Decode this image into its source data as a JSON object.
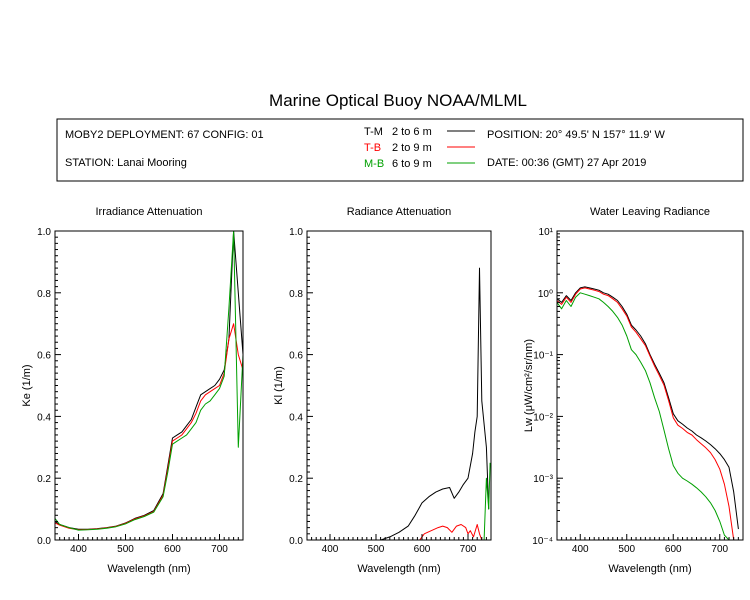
{
  "title": "Marine Optical Buoy NOAA/MLML",
  "info": {
    "deployment": "MOBY2 DEPLOYMENT: 67 CONFIG: 01",
    "station": "STATION: Lanai Mooring",
    "position": "POSITION: 20° 49.5' N   157° 11.9' W",
    "date": "DATE: 00:36 (GMT) 27 Apr 2019",
    "legend": [
      {
        "code": "T-M",
        "range": "2 to 6  m",
        "color": "#000000"
      },
      {
        "code": "T-B",
        "range": "2 to 9  m",
        "color": "#ff0000"
      },
      {
        "code": "M-B",
        "range": "6 to 9  m",
        "color": "#00a000"
      }
    ]
  },
  "chart_data": [
    {
      "type": "line",
      "title": "Irradiance Attenuation",
      "xlabel": "Wavelength (nm)",
      "ylabel": "Ke  (1/m)",
      "xlim": [
        350,
        750
      ],
      "ylim": [
        0,
        1.0
      ],
      "xticks": [
        "400",
        "500",
        "600",
        "700"
      ],
      "yticks": [
        "0.0",
        "0.2",
        "0.4",
        "0.6",
        "0.8",
        "1.0"
      ],
      "series": [
        {
          "color": "#000000",
          "x": [
            350,
            360,
            380,
            400,
            420,
            440,
            460,
            480,
            500,
            520,
            540,
            560,
            580,
            590,
            600,
            610,
            620,
            630,
            640,
            650,
            660,
            670,
            680,
            690,
            700,
            710,
            720,
            730,
            740,
            750
          ],
          "y": [
            0.06,
            0.05,
            0.04,
            0.035,
            0.035,
            0.037,
            0.04,
            0.045,
            0.055,
            0.07,
            0.08,
            0.095,
            0.15,
            0.24,
            0.33,
            0.34,
            0.35,
            0.37,
            0.39,
            0.43,
            0.47,
            0.48,
            0.49,
            0.5,
            0.52,
            0.55,
            0.65,
            1.0,
            0.8,
            0.6
          ]
        },
        {
          "color": "#ff0000",
          "x": [
            350,
            360,
            380,
            400,
            420,
            440,
            460,
            480,
            500,
            520,
            540,
            560,
            580,
            590,
            600,
            610,
            620,
            630,
            640,
            650,
            660,
            670,
            680,
            690,
            700,
            710,
            720,
            730,
            740,
            750
          ],
          "y": [
            0.055,
            0.048,
            0.038,
            0.033,
            0.034,
            0.036,
            0.039,
            0.044,
            0.054,
            0.068,
            0.078,
            0.092,
            0.145,
            0.23,
            0.32,
            0.33,
            0.34,
            0.36,
            0.38,
            0.41,
            0.45,
            0.47,
            0.48,
            0.49,
            0.5,
            0.54,
            0.65,
            0.7,
            0.6,
            0.55
          ]
        },
        {
          "color": "#00a000",
          "x": [
            350,
            360,
            380,
            400,
            420,
            440,
            460,
            480,
            500,
            520,
            540,
            560,
            580,
            590,
            600,
            610,
            620,
            630,
            640,
            650,
            660,
            670,
            680,
            690,
            700,
            710,
            720,
            730,
            740,
            750
          ],
          "y": [
            0.07,
            0.05,
            0.04,
            0.032,
            0.033,
            0.035,
            0.038,
            0.043,
            0.052,
            0.066,
            0.076,
            0.09,
            0.14,
            0.22,
            0.31,
            0.32,
            0.33,
            0.34,
            0.36,
            0.38,
            0.42,
            0.44,
            0.45,
            0.47,
            0.49,
            0.53,
            0.75,
            1.0,
            0.3,
            0.6
          ]
        }
      ]
    },
    {
      "type": "line",
      "title": "Radiance Attenuation",
      "xlabel": "Wavelength (nm)",
      "ylabel": "Kl  (1/m)",
      "xlim": [
        350,
        750
      ],
      "ylim": [
        0,
        1.0
      ],
      "xticks": [
        "400",
        "500",
        "600",
        "700"
      ],
      "yticks": [
        "0.0",
        "0.2",
        "0.4",
        "0.6",
        "0.8",
        "1.0"
      ],
      "series": [
        {
          "color": "#000000",
          "x": [
            510,
            530,
            550,
            570,
            585,
            600,
            615,
            630,
            645,
            660,
            670,
            680,
            690,
            700,
            710,
            715,
            720,
            725,
            730,
            740,
            745
          ],
          "y": [
            0.0,
            0.01,
            0.025,
            0.045,
            0.08,
            0.12,
            0.14,
            0.155,
            0.165,
            0.17,
            0.135,
            0.155,
            0.18,
            0.2,
            0.28,
            0.35,
            0.4,
            0.88,
            0.45,
            0.3,
            0.1
          ]
        },
        {
          "color": "#ff0000",
          "x": [
            595,
            605,
            620,
            635,
            645,
            655,
            665,
            675,
            685,
            695,
            700,
            705,
            712,
            720,
            725,
            730
          ],
          "y": [
            0.0,
            0.02,
            0.03,
            0.04,
            0.045,
            0.04,
            0.025,
            0.045,
            0.05,
            0.04,
            0.02,
            0.03,
            0.01,
            0.05,
            0.02,
            0.0
          ]
        },
        {
          "color": "#00a000",
          "x": [
            735,
            740,
            745,
            748
          ],
          "y": [
            0.0,
            0.2,
            0.1,
            0.25
          ]
        }
      ]
    },
    {
      "type": "line",
      "title": "Water Leaving Radiance",
      "xlabel": "Wavelength (nm)",
      "ylabel": "Lw  (μW/cm²/sr/nm)",
      "yscale": "log",
      "xlim": [
        350,
        750
      ],
      "ylim": [
        0.0001,
        10
      ],
      "xticks": [
        "400",
        "500",
        "600",
        "700"
      ],
      "yticks": [
        "10⁻⁴",
        "10⁻³",
        "10⁻²",
        "10⁻¹",
        "10⁰",
        "10¹"
      ],
      "series": [
        {
          "color": "#000000",
          "x": [
            350,
            360,
            370,
            380,
            390,
            400,
            410,
            420,
            430,
            440,
            450,
            460,
            470,
            480,
            490,
            500,
            510,
            520,
            530,
            540,
            550,
            560,
            570,
            580,
            590,
            600,
            610,
            620,
            630,
            640,
            650,
            660,
            670,
            680,
            690,
            700,
            710,
            720,
            730,
            740
          ],
          "y": [
            0.8,
            0.7,
            0.9,
            0.75,
            1.0,
            1.2,
            1.25,
            1.2,
            1.15,
            1.1,
            1.0,
            0.95,
            0.85,
            0.75,
            0.6,
            0.45,
            0.3,
            0.25,
            0.2,
            0.15,
            0.1,
            0.07,
            0.05,
            0.035,
            0.02,
            0.011,
            0.0085,
            0.0075,
            0.0065,
            0.0058,
            0.005,
            0.0045,
            0.004,
            0.0035,
            0.003,
            0.0025,
            0.002,
            0.0015,
            0.0006,
            0.00015
          ]
        },
        {
          "color": "#ff0000",
          "x": [
            350,
            360,
            370,
            380,
            390,
            400,
            410,
            420,
            430,
            440,
            450,
            460,
            470,
            480,
            490,
            500,
            510,
            520,
            530,
            540,
            550,
            560,
            570,
            580,
            590,
            600,
            610,
            620,
            630,
            640,
            650,
            660,
            670,
            680,
            690,
            700,
            710,
            720,
            730
          ],
          "y": [
            0.75,
            0.65,
            0.85,
            0.7,
            0.95,
            1.15,
            1.2,
            1.15,
            1.1,
            1.05,
            0.95,
            0.9,
            0.8,
            0.7,
            0.55,
            0.42,
            0.28,
            0.23,
            0.18,
            0.14,
            0.095,
            0.065,
            0.046,
            0.032,
            0.018,
            0.0095,
            0.0072,
            0.0064,
            0.0055,
            0.005,
            0.0042,
            0.0036,
            0.0031,
            0.0026,
            0.002,
            0.0014,
            0.0008,
            0.00035,
            0.0001
          ]
        },
        {
          "color": "#00a000",
          "x": [
            350,
            360,
            370,
            380,
            390,
            400,
            410,
            420,
            430,
            440,
            450,
            460,
            470,
            480,
            490,
            500,
            510,
            520,
            530,
            540,
            550,
            560,
            570,
            580,
            590,
            600,
            610,
            620,
            630,
            640,
            650,
            660,
            670,
            680,
            690,
            700,
            710,
            720
          ],
          "y": [
            0.7,
            0.55,
            0.75,
            0.6,
            0.85,
            1.0,
            0.95,
            0.9,
            0.85,
            0.8,
            0.7,
            0.6,
            0.5,
            0.4,
            0.3,
            0.2,
            0.12,
            0.1,
            0.075,
            0.055,
            0.035,
            0.02,
            0.012,
            0.006,
            0.003,
            0.0016,
            0.0012,
            0.001,
            0.0009,
            0.0008,
            0.0007,
            0.0006,
            0.0005,
            0.0004,
            0.0003,
            0.0002,
            0.00012,
            0.0001
          ]
        }
      ]
    }
  ]
}
